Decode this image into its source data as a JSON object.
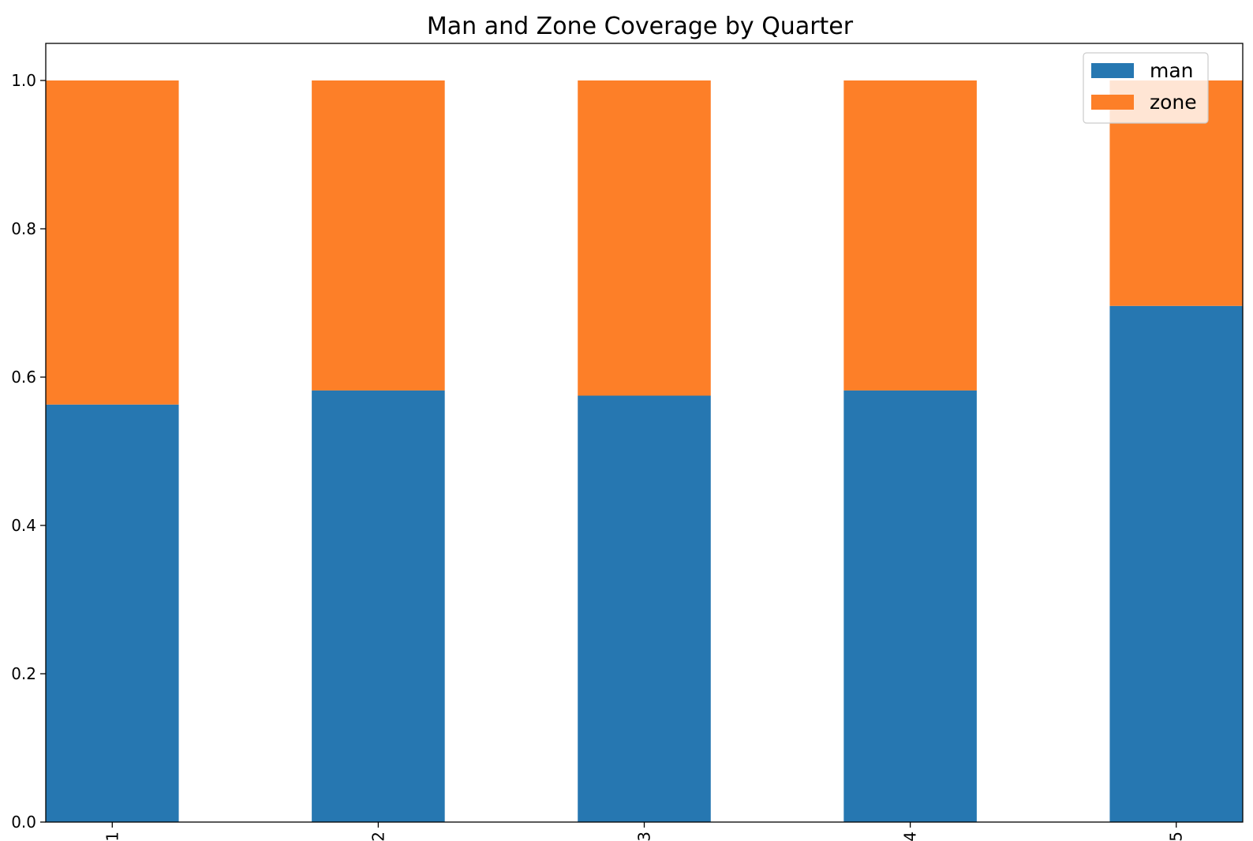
{
  "chart_data": {
    "type": "bar",
    "stacked": true,
    "title": "Man and Zone Coverage by Quarter",
    "xlabel": "",
    "ylabel": "",
    "categories": [
      "1",
      "2",
      "3",
      "4",
      "5"
    ],
    "series": [
      {
        "name": "man",
        "color": "#2677b1",
        "values": [
          0.563,
          0.582,
          0.575,
          0.582,
          0.696
        ]
      },
      {
        "name": "zone",
        "color": "#fd7f28",
        "values": [
          0.437,
          0.418,
          0.425,
          0.418,
          0.304
        ]
      }
    ],
    "ylim": [
      0,
      1.05
    ],
    "yticks": [
      "0.0",
      "0.2",
      "0.4",
      "0.6",
      "0.8",
      "1.0"
    ],
    "ytick_values": [
      0,
      0.2,
      0.4,
      0.6,
      0.8,
      1.0
    ],
    "xtick_rotation": "vertical",
    "legend_position": "top-right",
    "grid": false
  }
}
